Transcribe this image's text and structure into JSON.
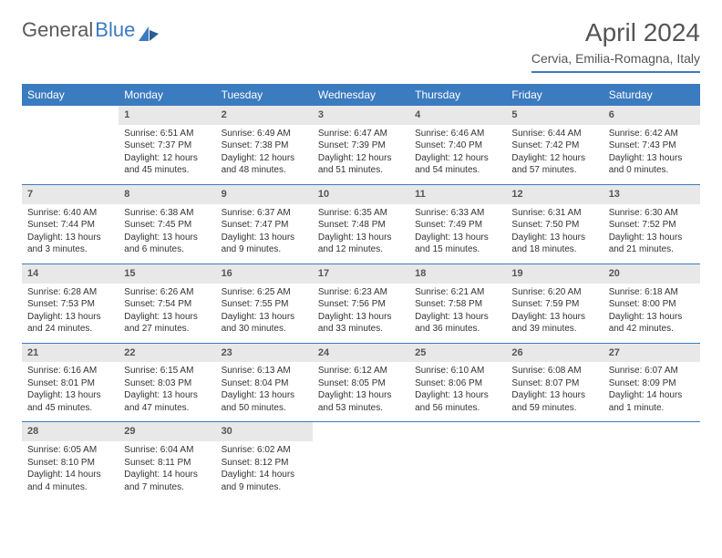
{
  "logo": {
    "text1": "General",
    "text2": "Blue"
  },
  "title": "April 2024",
  "location": "Cervia, Emilia-Romagna, Italy",
  "header_bg": "#3b7bbf",
  "daynum_bg": "#e8e8e8",
  "weekdays": [
    "Sunday",
    "Monday",
    "Tuesday",
    "Wednesday",
    "Thursday",
    "Friday",
    "Saturday"
  ],
  "weeks": [
    [
      null,
      {
        "n": "1",
        "sr": "Sunrise: 6:51 AM",
        "ss": "Sunset: 7:37 PM",
        "d1": "Daylight: 12 hours",
        "d2": "and 45 minutes."
      },
      {
        "n": "2",
        "sr": "Sunrise: 6:49 AM",
        "ss": "Sunset: 7:38 PM",
        "d1": "Daylight: 12 hours",
        "d2": "and 48 minutes."
      },
      {
        "n": "3",
        "sr": "Sunrise: 6:47 AM",
        "ss": "Sunset: 7:39 PM",
        "d1": "Daylight: 12 hours",
        "d2": "and 51 minutes."
      },
      {
        "n": "4",
        "sr": "Sunrise: 6:46 AM",
        "ss": "Sunset: 7:40 PM",
        "d1": "Daylight: 12 hours",
        "d2": "and 54 minutes."
      },
      {
        "n": "5",
        "sr": "Sunrise: 6:44 AM",
        "ss": "Sunset: 7:42 PM",
        "d1": "Daylight: 12 hours",
        "d2": "and 57 minutes."
      },
      {
        "n": "6",
        "sr": "Sunrise: 6:42 AM",
        "ss": "Sunset: 7:43 PM",
        "d1": "Daylight: 13 hours",
        "d2": "and 0 minutes."
      }
    ],
    [
      {
        "n": "7",
        "sr": "Sunrise: 6:40 AM",
        "ss": "Sunset: 7:44 PM",
        "d1": "Daylight: 13 hours",
        "d2": "and 3 minutes."
      },
      {
        "n": "8",
        "sr": "Sunrise: 6:38 AM",
        "ss": "Sunset: 7:45 PM",
        "d1": "Daylight: 13 hours",
        "d2": "and 6 minutes."
      },
      {
        "n": "9",
        "sr": "Sunrise: 6:37 AM",
        "ss": "Sunset: 7:47 PM",
        "d1": "Daylight: 13 hours",
        "d2": "and 9 minutes."
      },
      {
        "n": "10",
        "sr": "Sunrise: 6:35 AM",
        "ss": "Sunset: 7:48 PM",
        "d1": "Daylight: 13 hours",
        "d2": "and 12 minutes."
      },
      {
        "n": "11",
        "sr": "Sunrise: 6:33 AM",
        "ss": "Sunset: 7:49 PM",
        "d1": "Daylight: 13 hours",
        "d2": "and 15 minutes."
      },
      {
        "n": "12",
        "sr": "Sunrise: 6:31 AM",
        "ss": "Sunset: 7:50 PM",
        "d1": "Daylight: 13 hours",
        "d2": "and 18 minutes."
      },
      {
        "n": "13",
        "sr": "Sunrise: 6:30 AM",
        "ss": "Sunset: 7:52 PM",
        "d1": "Daylight: 13 hours",
        "d2": "and 21 minutes."
      }
    ],
    [
      {
        "n": "14",
        "sr": "Sunrise: 6:28 AM",
        "ss": "Sunset: 7:53 PM",
        "d1": "Daylight: 13 hours",
        "d2": "and 24 minutes."
      },
      {
        "n": "15",
        "sr": "Sunrise: 6:26 AM",
        "ss": "Sunset: 7:54 PM",
        "d1": "Daylight: 13 hours",
        "d2": "and 27 minutes."
      },
      {
        "n": "16",
        "sr": "Sunrise: 6:25 AM",
        "ss": "Sunset: 7:55 PM",
        "d1": "Daylight: 13 hours",
        "d2": "and 30 minutes."
      },
      {
        "n": "17",
        "sr": "Sunrise: 6:23 AM",
        "ss": "Sunset: 7:56 PM",
        "d1": "Daylight: 13 hours",
        "d2": "and 33 minutes."
      },
      {
        "n": "18",
        "sr": "Sunrise: 6:21 AM",
        "ss": "Sunset: 7:58 PM",
        "d1": "Daylight: 13 hours",
        "d2": "and 36 minutes."
      },
      {
        "n": "19",
        "sr": "Sunrise: 6:20 AM",
        "ss": "Sunset: 7:59 PM",
        "d1": "Daylight: 13 hours",
        "d2": "and 39 minutes."
      },
      {
        "n": "20",
        "sr": "Sunrise: 6:18 AM",
        "ss": "Sunset: 8:00 PM",
        "d1": "Daylight: 13 hours",
        "d2": "and 42 minutes."
      }
    ],
    [
      {
        "n": "21",
        "sr": "Sunrise: 6:16 AM",
        "ss": "Sunset: 8:01 PM",
        "d1": "Daylight: 13 hours",
        "d2": "and 45 minutes."
      },
      {
        "n": "22",
        "sr": "Sunrise: 6:15 AM",
        "ss": "Sunset: 8:03 PM",
        "d1": "Daylight: 13 hours",
        "d2": "and 47 minutes."
      },
      {
        "n": "23",
        "sr": "Sunrise: 6:13 AM",
        "ss": "Sunset: 8:04 PM",
        "d1": "Daylight: 13 hours",
        "d2": "and 50 minutes."
      },
      {
        "n": "24",
        "sr": "Sunrise: 6:12 AM",
        "ss": "Sunset: 8:05 PM",
        "d1": "Daylight: 13 hours",
        "d2": "and 53 minutes."
      },
      {
        "n": "25",
        "sr": "Sunrise: 6:10 AM",
        "ss": "Sunset: 8:06 PM",
        "d1": "Daylight: 13 hours",
        "d2": "and 56 minutes."
      },
      {
        "n": "26",
        "sr": "Sunrise: 6:08 AM",
        "ss": "Sunset: 8:07 PM",
        "d1": "Daylight: 13 hours",
        "d2": "and 59 minutes."
      },
      {
        "n": "27",
        "sr": "Sunrise: 6:07 AM",
        "ss": "Sunset: 8:09 PM",
        "d1": "Daylight: 14 hours",
        "d2": "and 1 minute."
      }
    ],
    [
      {
        "n": "28",
        "sr": "Sunrise: 6:05 AM",
        "ss": "Sunset: 8:10 PM",
        "d1": "Daylight: 14 hours",
        "d2": "and 4 minutes."
      },
      {
        "n": "29",
        "sr": "Sunrise: 6:04 AM",
        "ss": "Sunset: 8:11 PM",
        "d1": "Daylight: 14 hours",
        "d2": "and 7 minutes."
      },
      {
        "n": "30",
        "sr": "Sunrise: 6:02 AM",
        "ss": "Sunset: 8:12 PM",
        "d1": "Daylight: 14 hours",
        "d2": "and 9 minutes."
      },
      null,
      null,
      null,
      null
    ]
  ]
}
